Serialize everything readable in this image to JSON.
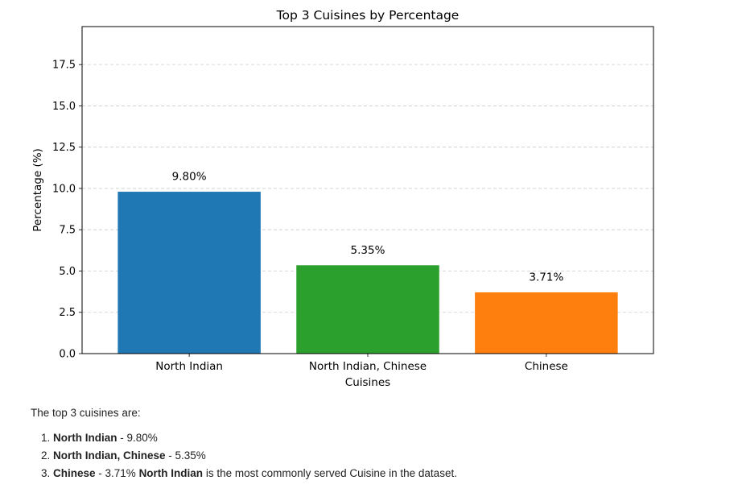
{
  "chart_data": {
    "type": "bar",
    "title": "Top 3 Cuisines by Percentage",
    "xlabel": "Cuisines",
    "ylabel": "Percentage (%)",
    "categories": [
      "North Indian",
      "North Indian, Chinese",
      "Chinese"
    ],
    "values": [
      9.8,
      5.35,
      3.71
    ],
    "data_labels": [
      "9.80%",
      "5.35%",
      "3.71%"
    ],
    "colors": [
      "#1f77b4",
      "#2ca02c",
      "#ff7f0e"
    ],
    "ylim": [
      0,
      19.8
    ],
    "yticks": [
      0.0,
      2.5,
      5.0,
      7.5,
      10.0,
      12.5,
      15.0,
      17.5
    ],
    "ytick_labels": [
      "0.0",
      "2.5",
      "5.0",
      "7.5",
      "10.0",
      "12.5",
      "15.0",
      "17.5"
    ],
    "grid": "y-dashed",
    "legend": "none"
  },
  "summary": {
    "intro": "The top 3 cuisines are:",
    "items": [
      {
        "name": "North Indian",
        "value": " - 9.80%"
      },
      {
        "name": "North Indian, Chinese",
        "value": " - 5.35%"
      },
      {
        "name": "Chinese",
        "value": " - 3.71% "
      }
    ],
    "conclusion_bold": "North Indian",
    "conclusion_rest": " is the most commonly served Cuisine in the dataset."
  }
}
